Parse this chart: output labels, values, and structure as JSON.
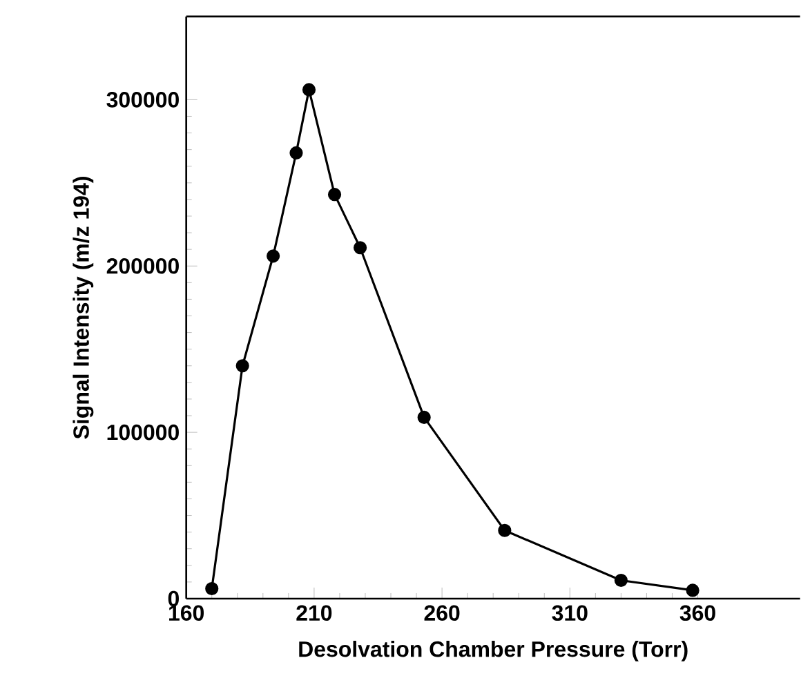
{
  "chart_data": {
    "type": "line",
    "xlabel": "Desolvation Chamber Pressure (Torr)",
    "ylabel": "Signal Intensity (m/z 194)",
    "x": [
      170,
      182,
      194,
      203,
      208,
      218,
      228,
      253,
      284.5,
      330,
      358
    ],
    "series": [
      {
        "color": "#000000",
        "values": [
          6000,
          140000,
          206000,
          268000,
          306000,
          243000,
          211000,
          109000,
          41000,
          11000,
          5000
        ]
      }
    ],
    "xlim": [
      160,
      400
    ],
    "xticks": [
      160,
      210,
      260,
      310,
      360
    ],
    "ylim": [
      0,
      350000
    ],
    "yticks": [
      0,
      100000,
      200000,
      300000
    ],
    "marker": "circle",
    "line_style": "solid"
  }
}
